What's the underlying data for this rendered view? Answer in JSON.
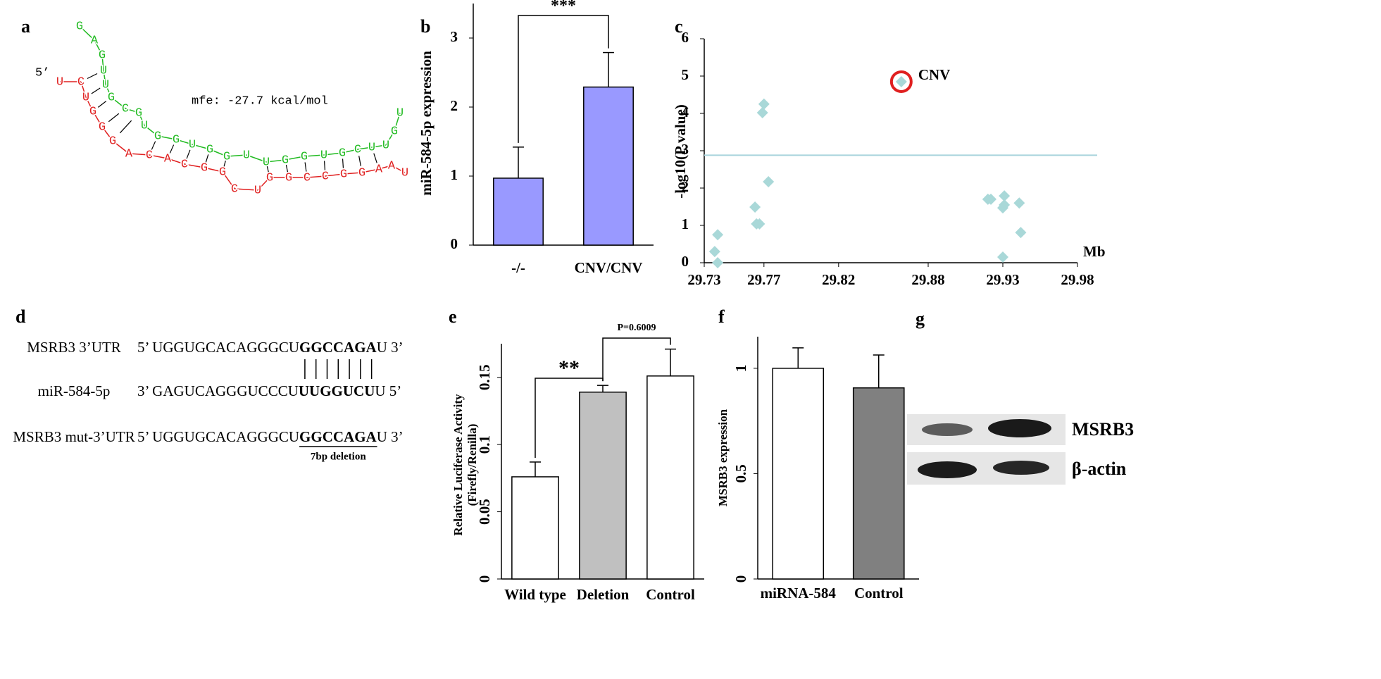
{
  "panel_a": {
    "panel_label": "a",
    "five_prime": "5’",
    "mfe": "mfe: -27.7 kcal/mol",
    "green": [
      "G",
      "A",
      "G",
      "U",
      "U",
      "G",
      "C",
      "G",
      "U",
      "G",
      "G",
      "U",
      "G",
      "G",
      "U",
      "U",
      "G",
      "G",
      "U",
      "G",
      "C",
      "U",
      "U",
      "G",
      "U"
    ],
    "red": [
      "U",
      "C",
      "U",
      "G",
      "G",
      "G",
      "A",
      "C",
      "A",
      "C",
      "G",
      "G",
      "C",
      "U",
      "G",
      "G",
      "C",
      "C",
      "G",
      "G",
      "A",
      "A",
      "U"
    ]
  },
  "chart_data": [
    {
      "type": "bar",
      "panel_label": "b",
      "ylabel": "miR-584-5p expression",
      "categories": [
        "-/-",
        "CNV/CNV"
      ],
      "values": [
        0.97,
        2.29
      ],
      "errors": [
        0.45,
        0.5
      ],
      "colors": [
        "#9999ff",
        "#9999ff"
      ],
      "annotations": [
        "***"
      ],
      "ylim": [
        0,
        3.5
      ],
      "yticks": [
        0,
        1,
        2,
        3
      ]
    },
    {
      "type": "scatter",
      "panel_label": "c",
      "ylabel": "-log10(P value)",
      "xlabel": "Mb",
      "x": [
        29.737,
        29.739,
        29.739,
        29.764,
        29.765,
        29.767,
        29.769,
        29.77,
        29.773,
        29.862,
        29.92,
        29.922,
        29.931,
        29.931,
        29.93,
        29.93,
        29.941,
        29.942
      ],
      "y": [
        0.3,
        0.75,
        0.0,
        1.49,
        1.04,
        1.04,
        4.02,
        4.25,
        2.17,
        4.85,
        1.7,
        1.7,
        1.79,
        1.55,
        1.47,
        0.15,
        1.6,
        0.81
      ],
      "color": "#a9d8d8",
      "hline": 2.88,
      "hline_color": "#a8d4dc",
      "annotation": "CNV",
      "highlight_color": "#e02020",
      "xlim": [
        29.73,
        29.98
      ],
      "xticks": [
        29.73,
        29.77,
        29.82,
        29.88,
        29.93,
        29.98
      ],
      "ylim": [
        0,
        6
      ],
      "yticks": [
        0,
        1,
        2,
        3,
        4,
        5,
        6
      ]
    },
    {
      "type": "bar",
      "panel_label": "e",
      "ylabel": [
        "Relative Luciferase Activity",
        "(Firefly/Renilla)"
      ],
      "categories": [
        "Wild type",
        "Deletion",
        "Control"
      ],
      "values": [
        0.076,
        0.139,
        0.151
      ],
      "errors": [
        0.011,
        0.005,
        0.02
      ],
      "colors": [
        "#ffffff",
        "#c0c0c0",
        "#ffffff"
      ],
      "annotations": [
        "**",
        "P=0.6009"
      ],
      "ylim": [
        0,
        0.175
      ],
      "yticks": [
        0,
        0.05,
        0.1,
        0.15
      ]
    },
    {
      "type": "bar",
      "panel_label": "f",
      "ylabel": "MSRB3 expression",
      "categories": [
        "miRNA-584",
        "Control"
      ],
      "values": [
        1.0,
        0.907
      ],
      "errors": [
        0.097,
        0.156
      ],
      "colors": [
        "#ffffff",
        "#808080"
      ],
      "ylim": [
        0,
        1.15
      ],
      "yticks": [
        0,
        0.5,
        1
      ]
    }
  ],
  "panel_d": {
    "panel_label": "d",
    "rows": [
      {
        "name": "MSRB3 3’UTR",
        "prefix": "5’ UGGUGCACAGGGCU",
        "core": "GGCCAGA",
        "suffix": "U 3’"
      },
      {
        "name": "miR-584-5p",
        "prefix": "3’ GAGUCAGGGUCCCU",
        "core": "UUGGUCU",
        "suffix": "U 5’"
      },
      {
        "name": "MSRB3 mut-3’UTR",
        "prefix": "5’ UGGUGCACAGGGCU",
        "core": "GGCCAGA",
        "suffix": "U 3’"
      }
    ],
    "note": "7bp deletion"
  },
  "panel_g": {
    "panel_label": "g",
    "bands": [
      "MSRB3",
      "β-actin"
    ]
  }
}
